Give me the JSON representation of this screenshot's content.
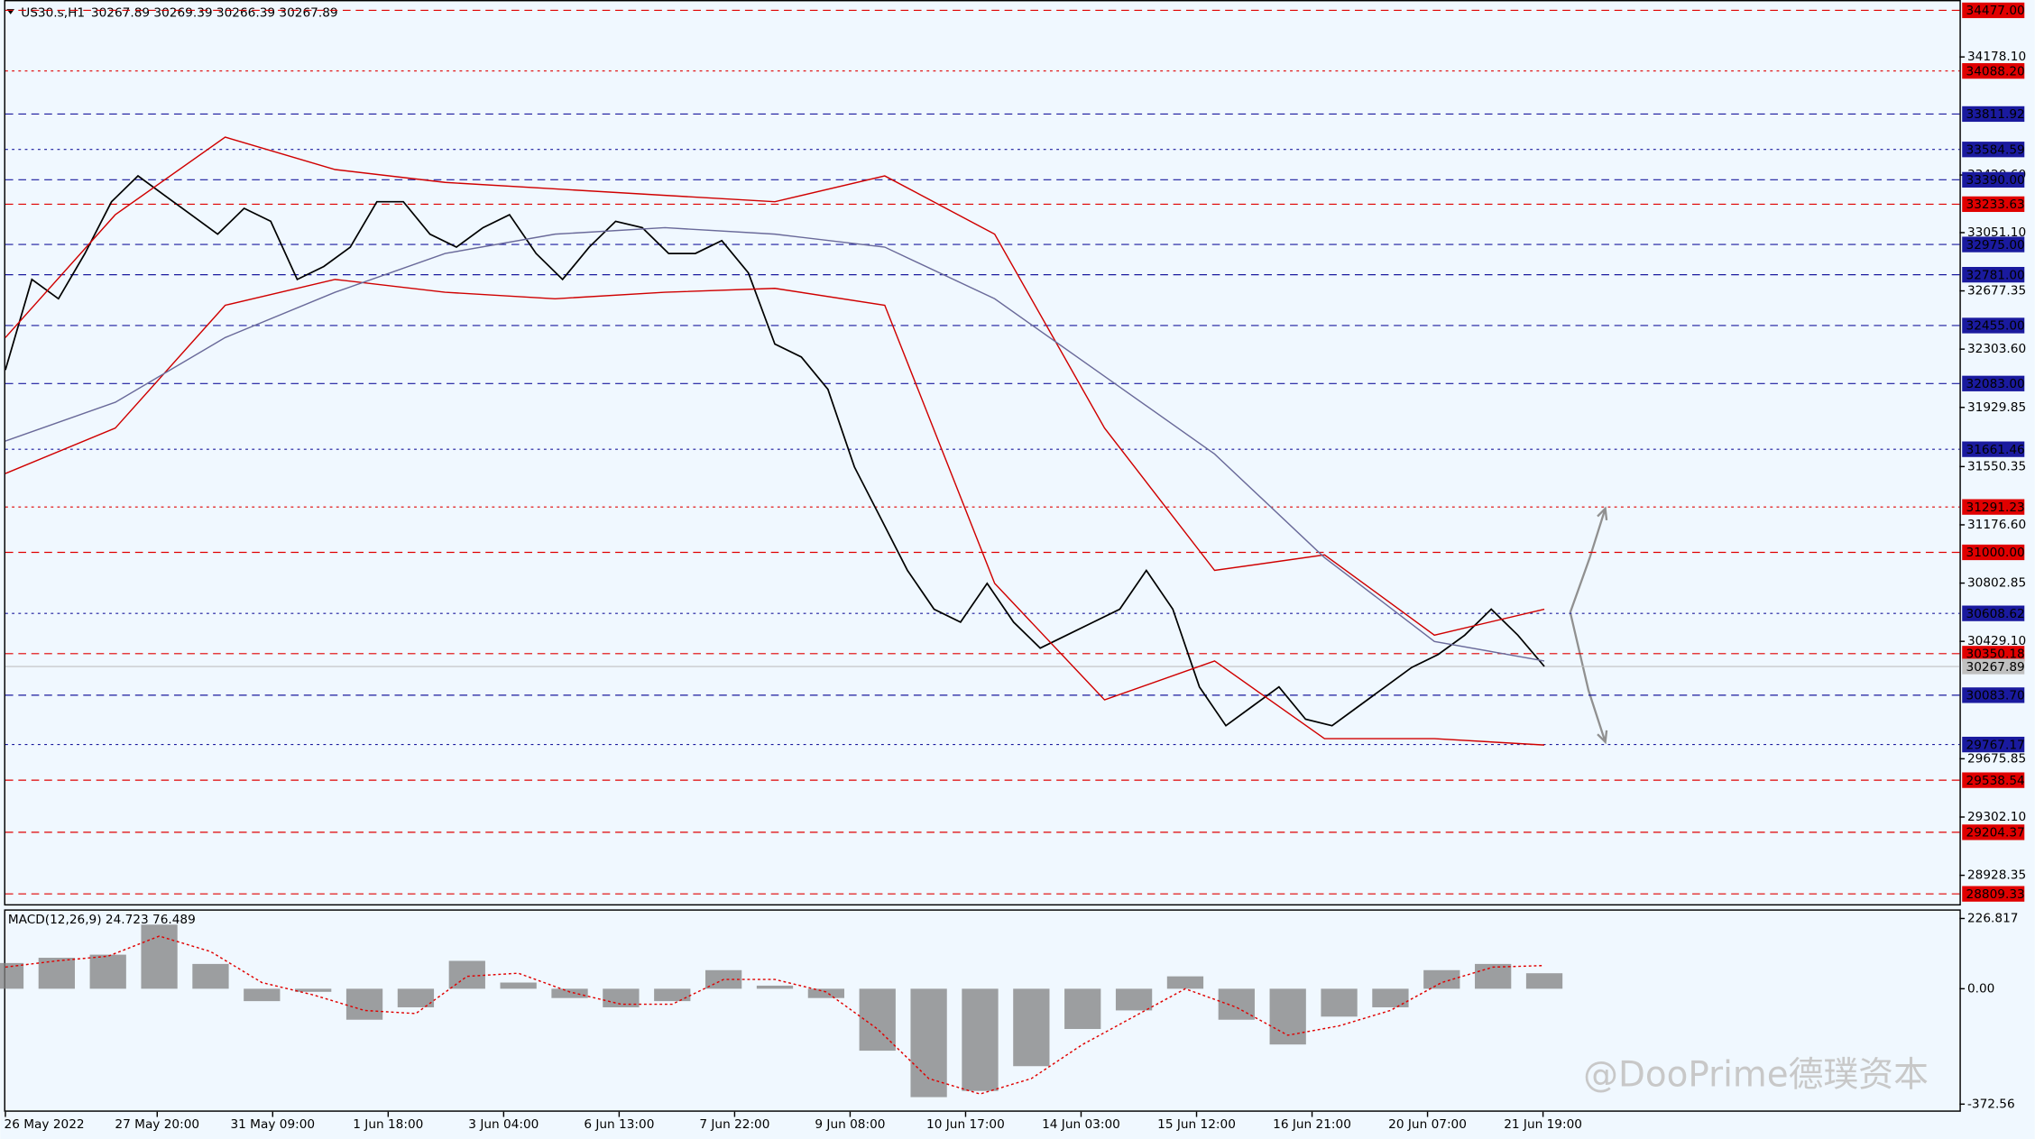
{
  "chart_data": {
    "type": "line",
    "title": "US30.s,H1",
    "quote": "30267.89 30269.39 30266.39 30267.89",
    "ylim": [
      28743,
      34535
    ],
    "yticks": [
      {
        "value": 34178.1,
        "label": "34178.10"
      },
      {
        "value": 33420.6,
        "label": "33420.60"
      },
      {
        "value": 33051.1,
        "label": "33051.10"
      },
      {
        "value": 32677.35,
        "label": "32677.35"
      },
      {
        "value": 32303.6,
        "label": "32303.60"
      },
      {
        "value": 31929.85,
        "label": "31929.85"
      },
      {
        "value": 31550.35,
        "label": "31550.35"
      },
      {
        "value": 31176.6,
        "label": "31176.60"
      },
      {
        "value": 30802.85,
        "label": "30802.85"
      },
      {
        "value": 30429.1,
        "label": "30429.10"
      },
      {
        "value": 29675.85,
        "label": "29675.85"
      },
      {
        "value": 29302.1,
        "label": "29302.10"
      },
      {
        "value": 28928.35,
        "label": "28928.35"
      }
    ],
    "levels": [
      {
        "value": 34477,
        "label": "34477.00",
        "color": "#e00000",
        "dash": "6 4"
      },
      {
        "value": 34088.2,
        "label": "34088.20",
        "color": "#e00000",
        "dash": "2 3"
      },
      {
        "value": 33811.92,
        "label": "33811.92",
        "color": "#1a1a9e",
        "dash": "6 4"
      },
      {
        "value": 33584.59,
        "label": "33584.59",
        "color": "#1a1a9e",
        "dash": "2 3"
      },
      {
        "value": 33390,
        "label": "33390.00",
        "color": "#1a1a9e",
        "dash": "6 4"
      },
      {
        "value": 33233.63,
        "label": "33233.63",
        "color": "#e00000",
        "dash": "6 4"
      },
      {
        "value": 32975,
        "label": "32975.00",
        "color": "#1a1a9e",
        "dash": "6 4"
      },
      {
        "value": 32781,
        "label": "32781.00",
        "color": "#1a1a9e",
        "dash": "6 4"
      },
      {
        "value": 32455,
        "label": "32455.00",
        "color": "#1a1a9e",
        "dash": "6 4"
      },
      {
        "value": 32083,
        "label": "32083.00",
        "color": "#1a1a9e",
        "dash": "6 4"
      },
      {
        "value": 31661.46,
        "label": "31661.46",
        "color": "#1a1a9e",
        "dash": "2 3"
      },
      {
        "value": 31291.23,
        "label": "31291.23",
        "color": "#e00000",
        "dash": "2 3"
      },
      {
        "value": 31000,
        "label": "31000.00",
        "color": "#e00000",
        "dash": "6 4"
      },
      {
        "value": 30608.62,
        "label": "30608.62",
        "color": "#1a1a9e",
        "dash": "2 3"
      },
      {
        "value": 30350.18,
        "label": "30350.18",
        "color": "#e00000",
        "dash": "6 4"
      },
      {
        "value": 30267.89,
        "label": "30267.89",
        "color": "#c0c0c0",
        "dash": "none"
      },
      {
        "value": 30083.7,
        "label": "30083.70",
        "color": "#1a1a9e",
        "dash": "6 4"
      },
      {
        "value": 29767.17,
        "label": "29767.17",
        "color": "#1a1a9e",
        "dash": "2 3"
      },
      {
        "value": 29538.54,
        "label": "29538.54",
        "color": "#e00000",
        "dash": "6 4"
      },
      {
        "value": 29204.37,
        "label": "29204.37",
        "color": "#e00000",
        "dash": "6 4"
      },
      {
        "value": 28809.33,
        "label": "28809.33",
        "color": "#e00000",
        "dash": "6 4"
      }
    ],
    "xtick_labels": [
      "26 May 2022",
      "27 May 20:00",
      "31 May 09:00",
      "1 Jun 18:00",
      "3 Jun 04:00",
      "6 Jun 13:00",
      "7 Jun 22:00",
      "9 Jun 08:00",
      "10 Jun 17:00",
      "14 Jun 03:00",
      "15 Jun 12:00",
      "16 Jun 21:00",
      "20 Jun 07:00",
      "21 Jun 19:00"
    ],
    "series": [
      {
        "color": "#000000",
        "values": [
          32170,
          32751,
          32627,
          32917,
          33249,
          33415,
          33290,
          33166,
          33041,
          33207,
          33124,
          32751,
          32834,
          32958,
          33249,
          33249,
          33041,
          32958,
          33083,
          33166,
          32917,
          32751,
          32958,
          33124,
          33083,
          32917,
          32917,
          33000,
          32793,
          32336,
          32253,
          32046,
          31548,
          31216,
          30884,
          30635,
          30552,
          30801,
          30552,
          30386,
          30469,
          30552,
          30635,
          30884,
          30635,
          30137,
          29888,
          30013,
          30137,
          29930,
          29888,
          30013,
          30137,
          30262,
          30345,
          30469,
          30635,
          30469,
          30268
        ]
      },
      {
        "color": "#d00000",
        "values": [
          32378,
          33166,
          33664,
          33456,
          33373,
          33332,
          33290,
          33249,
          33415,
          33041,
          31797,
          30884,
          30984,
          30469,
          30635
        ]
      },
      {
        "color": "#d00000",
        "values": [
          31506,
          31797,
          32585,
          32751,
          32668,
          32627,
          32668,
          32693,
          32585,
          30801,
          30054,
          30303,
          29805,
          29805,
          29764
        ]
      },
      {
        "color": "#6a6a9a",
        "values": [
          31714,
          31963,
          32378,
          32668,
          32917,
          33041,
          33083,
          33041,
          32958,
          32627,
          32129,
          31631,
          30967,
          30428,
          30303
        ]
      }
    ],
    "macd": {
      "label": "MACD(12,26,9) 24.723 76.489",
      "ylim": [
        -393,
        252
      ],
      "yticks": [
        226.817,
        {
          "value": 0,
          "label": "0.00"
        },
        -372.56
      ],
      "histogram_color": "#808080",
      "histogram": [
        83,
        100,
        110,
        207,
        80,
        -40,
        -10,
        -100,
        -60,
        90,
        20,
        -30,
        -60,
        -40,
        60,
        10,
        -30,
        -200,
        -350,
        -330,
        -250,
        -130,
        -70,
        40,
        -100,
        -180,
        -90,
        -60,
        60,
        80,
        50
      ],
      "signal_color": "#e00000",
      "signal": [
        70,
        90,
        105,
        170,
        120,
        20,
        -20,
        -70,
        -80,
        40,
        50,
        -10,
        -50,
        -50,
        30,
        30,
        -10,
        -130,
        -290,
        -340,
        -290,
        -180,
        -90,
        0,
        -60,
        -150,
        -120,
        -70,
        20,
        70,
        75
      ]
    },
    "watermark": "@DooPrime德璞资本"
  }
}
